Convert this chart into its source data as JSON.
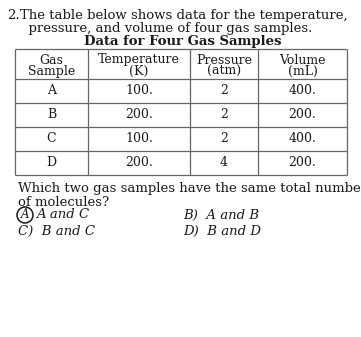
{
  "question_number": "2.",
  "q_line1": "The table below shows data for the temperature,",
  "q_line2": "  pressure, and volume of four gas samples.",
  "table_title": "Data for Four Gas Samples",
  "col_headers_line1": [
    "Gas",
    "Temperature",
    "Pressure",
    "Volume"
  ],
  "col_headers_line2": [
    "Sample",
    "(K)",
    "(atm)",
    "(mL)"
  ],
  "rows": [
    [
      "A",
      "100.",
      "2",
      "400."
    ],
    [
      "B",
      "200.",
      "2",
      "200."
    ],
    [
      "C",
      "100.",
      "2",
      "400."
    ],
    [
      "D",
      "200.",
      "4",
      "200."
    ]
  ],
  "followup_line1": "Which two gas samples have the same total number",
  "followup_line2": "of molecules?",
  "ans_A_text": "A and C",
  "ans_B_text": "A and B",
  "ans_C_text": "B and C",
  "ans_D_text": "B and D",
  "bg_color": "#ffffff",
  "text_color": "#1a1a1a",
  "table_line_color": "#666666",
  "font_size": 9.5,
  "table_font_size": 9.0
}
